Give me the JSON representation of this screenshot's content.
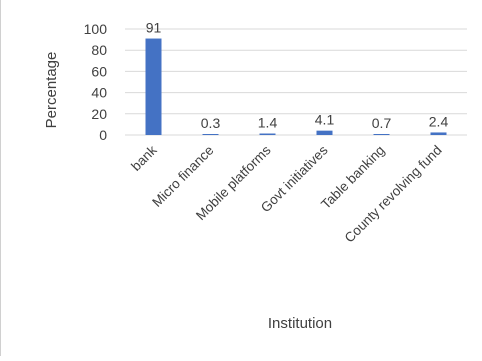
{
  "chart_data": {
    "type": "bar",
    "categories": [
      "bank",
      "Micro finance",
      "Mobile platforms",
      "Govt initiatives",
      "Table banking",
      "County revolving fund"
    ],
    "values": [
      91,
      0.3,
      1.4,
      4.1,
      0.7,
      2.4
    ],
    "value_labels": [
      "91",
      "0.3",
      "1.4",
      "4.1",
      "0.7",
      "2.4"
    ],
    "xlabel": "Institution",
    "ylabel": "Percentage",
    "ylim": [
      0,
      100
    ],
    "yticks": [
      0,
      20,
      40,
      60,
      80,
      100
    ],
    "grid": true,
    "bar_color": "#4472c4",
    "grid_color": "#d9d9d9"
  }
}
